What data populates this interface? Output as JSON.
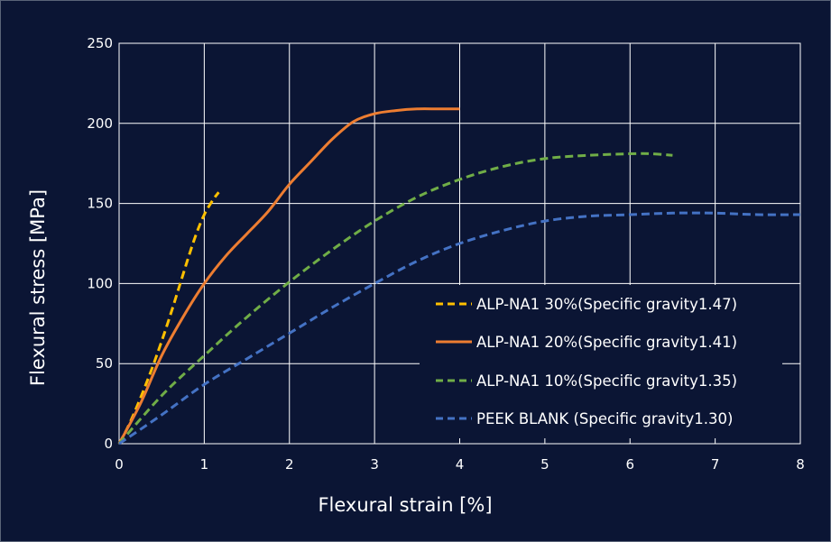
{
  "chart_data": {
    "type": "line",
    "title": "",
    "xlabel": "Flexural strain [%]",
    "ylabel": "Flexural stress [MPa]",
    "xlim": [
      0,
      8
    ],
    "ylim": [
      0,
      250
    ],
    "xticks": [
      "0",
      "1",
      "2",
      "3",
      "4",
      "5",
      "6",
      "7",
      "8"
    ],
    "yticks": [
      "0",
      "50",
      "100",
      "150",
      "200",
      "250"
    ],
    "grid": true,
    "legend_position": "bottom-right",
    "background": "#0b1534",
    "series": [
      {
        "name": "ALP-NA1 30%(Specific gravity1.47)",
        "color": "#ffc000",
        "dash": "dashed",
        "points": [
          [
            0,
            0
          ],
          [
            0.1,
            10
          ],
          [
            0.2,
            22
          ],
          [
            0.3,
            35
          ],
          [
            0.4,
            49
          ],
          [
            0.5,
            64
          ],
          [
            0.6,
            80
          ],
          [
            0.7,
            97
          ],
          [
            0.8,
            114
          ],
          [
            0.9,
            130
          ],
          [
            1.0,
            143
          ],
          [
            1.1,
            152
          ],
          [
            1.17,
            157
          ]
        ]
      },
      {
        "name": "ALP-NA1 20%(Specific gravity1.41)",
        "color": "#ed7d31",
        "dash": "solid",
        "points": [
          [
            0,
            0
          ],
          [
            0.25,
            25
          ],
          [
            0.5,
            55
          ],
          [
            0.75,
            79
          ],
          [
            1.0,
            100
          ],
          [
            1.25,
            117
          ],
          [
            1.5,
            131
          ],
          [
            1.75,
            145
          ],
          [
            2.0,
            162
          ],
          [
            2.25,
            176
          ],
          [
            2.5,
            190
          ],
          [
            2.75,
            201
          ],
          [
            3.0,
            206
          ],
          [
            3.25,
            208
          ],
          [
            3.5,
            209
          ],
          [
            3.75,
            209
          ],
          [
            4.0,
            209
          ]
        ]
      },
      {
        "name": "ALP-NA1 10%(Specific gravity1.35)",
        "color": "#70ad47",
        "dash": "dashed",
        "points": [
          [
            0,
            0
          ],
          [
            0.5,
            30
          ],
          [
            1.0,
            55
          ],
          [
            1.5,
            79
          ],
          [
            2.0,
            101
          ],
          [
            2.5,
            121
          ],
          [
            3.0,
            139
          ],
          [
            3.5,
            154
          ],
          [
            4.0,
            165
          ],
          [
            4.5,
            173
          ],
          [
            5.0,
            178
          ],
          [
            5.5,
            180
          ],
          [
            6.0,
            181
          ],
          [
            6.25,
            181
          ],
          [
            6.5,
            180
          ]
        ]
      },
      {
        "name": "PEEK BLANK (Specific gravity1.30)",
        "color": "#4472c4",
        "dash": "dashed",
        "points": [
          [
            0,
            0
          ],
          [
            0.5,
            18
          ],
          [
            1.0,
            37
          ],
          [
            1.5,
            53
          ],
          [
            2.0,
            69
          ],
          [
            2.5,
            85
          ],
          [
            3.0,
            100
          ],
          [
            3.5,
            114
          ],
          [
            4.0,
            125
          ],
          [
            4.5,
            133
          ],
          [
            5.0,
            139
          ],
          [
            5.5,
            142
          ],
          [
            6.0,
            143
          ],
          [
            6.5,
            144
          ],
          [
            7.0,
            144
          ],
          [
            7.5,
            143
          ],
          [
            8.0,
            143
          ]
        ]
      }
    ]
  }
}
